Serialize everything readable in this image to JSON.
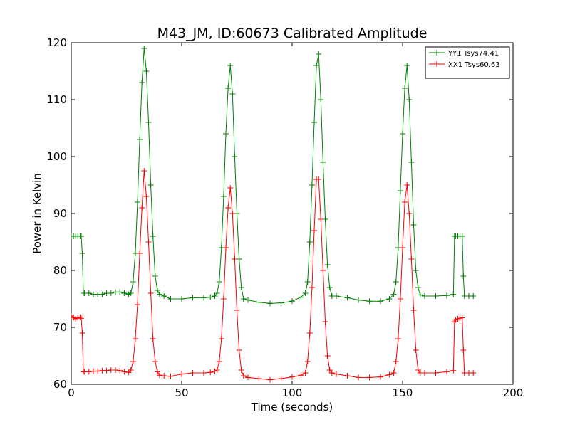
{
  "chart_data": {
    "type": "line",
    "title": "M43_JM, ID:60673 Calibrated Amplitude",
    "xlabel": "Time (seconds)",
    "ylabel": "Power in Kelvin",
    "xlim": [
      0,
      200
    ],
    "ylim": [
      60,
      120
    ],
    "xticks": [
      "0",
      "50",
      "100",
      "150",
      "200"
    ],
    "yticks": [
      "60",
      "70",
      "80",
      "90",
      "100",
      "110",
      "120"
    ],
    "grid": false,
    "legend_position": "top-right",
    "marker": "plus",
    "series": [
      {
        "name": "YY1 Tsys74.41",
        "color": "#008000",
        "points": [
          [
            0,
            86.0
          ],
          [
            1,
            86.0
          ],
          [
            2,
            86.0
          ],
          [
            3,
            86.0
          ],
          [
            4,
            86.0
          ],
          [
            4.5,
            86.0
          ],
          [
            5,
            83.0
          ],
          [
            5.5,
            76.0
          ],
          [
            6,
            76.0
          ],
          [
            8,
            76.0
          ],
          [
            10,
            75.8
          ],
          [
            12,
            75.8
          ],
          [
            14,
            75.8
          ],
          [
            16,
            76.0
          ],
          [
            18,
            76.0
          ],
          [
            20,
            76.2
          ],
          [
            22,
            76.2
          ],
          [
            24,
            76.0
          ],
          [
            26,
            75.8
          ],
          [
            27,
            76.0
          ],
          [
            28,
            78.0
          ],
          [
            29,
            83.0
          ],
          [
            30,
            92.0
          ],
          [
            31,
            103.0
          ],
          [
            32,
            113.0
          ],
          [
            33,
            119.0
          ],
          [
            34,
            115.0
          ],
          [
            35,
            106.0
          ],
          [
            36,
            95.0
          ],
          [
            37,
            86.0
          ],
          [
            38,
            79.0
          ],
          [
            39,
            76.5
          ],
          [
            40,
            75.8
          ],
          [
            42,
            75.5
          ],
          [
            45,
            75.0
          ],
          [
            50,
            75.0
          ],
          [
            55,
            75.2
          ],
          [
            60,
            75.2
          ],
          [
            63,
            75.3
          ],
          [
            65,
            75.5
          ],
          [
            66,
            76.0
          ],
          [
            67,
            78.0
          ],
          [
            68,
            84.0
          ],
          [
            69,
            93.0
          ],
          [
            70,
            104.0
          ],
          [
            71,
            112.0
          ],
          [
            72,
            116.0
          ],
          [
            73,
            111.0
          ],
          [
            74,
            100.0
          ],
          [
            75,
            90.0
          ],
          [
            76,
            82.0
          ],
          [
            77,
            77.0
          ],
          [
            78,
            75.0
          ],
          [
            80,
            74.8
          ],
          [
            85,
            74.4
          ],
          [
            90,
            74.2
          ],
          [
            95,
            74.3
          ],
          [
            100,
            74.6
          ],
          [
            104,
            75.3
          ],
          [
            106,
            76.0
          ],
          [
            107,
            78.0
          ],
          [
            108,
            85.0
          ],
          [
            109,
            95.0
          ],
          [
            110,
            106.0
          ],
          [
            111,
            116.0
          ],
          [
            112,
            118.0
          ],
          [
            113,
            110.0
          ],
          [
            114,
            99.0
          ],
          [
            115,
            89.0
          ],
          [
            116,
            81.0
          ],
          [
            117,
            77.0
          ],
          [
            118,
            75.5
          ],
          [
            120,
            75.5
          ],
          [
            125,
            75.2
          ],
          [
            130,
            74.8
          ],
          [
            135,
            74.6
          ],
          [
            140,
            74.6
          ],
          [
            144,
            75.0
          ],
          [
            146,
            75.8
          ],
          [
            147,
            78.0
          ],
          [
            148,
            84.0
          ],
          [
            149,
            94.0
          ],
          [
            150,
            104.0
          ],
          [
            151,
            112.0
          ],
          [
            152,
            116.0
          ],
          [
            153,
            110.0
          ],
          [
            154,
            99.0
          ],
          [
            155,
            88.0
          ],
          [
            156,
            80.0
          ],
          [
            157,
            77.0
          ],
          [
            158,
            75.7
          ],
          [
            160,
            75.5
          ],
          [
            165,
            75.5
          ],
          [
            170,
            75.6
          ],
          [
            173,
            75.8
          ],
          [
            173.5,
            86.0
          ],
          [
            174,
            86.0
          ],
          [
            175,
            86.0
          ],
          [
            176,
            86.0
          ],
          [
            177,
            86.0
          ],
          [
            177.5,
            79.0
          ],
          [
            178,
            75.5
          ],
          [
            180,
            75.5
          ],
          [
            182,
            75.5
          ]
        ]
      },
      {
        "name": "XX1 Tsys60.63",
        "color": "#ff0000",
        "points": [
          [
            0,
            72.0
          ],
          [
            1,
            71.7
          ],
          [
            2,
            71.5
          ],
          [
            3,
            71.7
          ],
          [
            4,
            71.8
          ],
          [
            4.5,
            71.6
          ],
          [
            5,
            69.0
          ],
          [
            5.5,
            62.2
          ],
          [
            6,
            62.2
          ],
          [
            8,
            62.2
          ],
          [
            10,
            62.3
          ],
          [
            12,
            62.3
          ],
          [
            14,
            62.4
          ],
          [
            16,
            62.4
          ],
          [
            18,
            62.5
          ],
          [
            20,
            62.5
          ],
          [
            22,
            62.4
          ],
          [
            24,
            62.2
          ],
          [
            26,
            62.1
          ],
          [
            27,
            62.5
          ],
          [
            28,
            64.0
          ],
          [
            29,
            68.0
          ],
          [
            30,
            74.0
          ],
          [
            31,
            83.0
          ],
          [
            32,
            91.0
          ],
          [
            33,
            97.5
          ],
          [
            34,
            93.0
          ],
          [
            35,
            85.0
          ],
          [
            36,
            76.0
          ],
          [
            37,
            68.0
          ],
          [
            38,
            64.0
          ],
          [
            39,
            62.2
          ],
          [
            40,
            61.6
          ],
          [
            42,
            61.5
          ],
          [
            45,
            61.4
          ],
          [
            50,
            61.8
          ],
          [
            55,
            62.0
          ],
          [
            60,
            62.0
          ],
          [
            63,
            62.1
          ],
          [
            65,
            62.3
          ],
          [
            66,
            62.5
          ],
          [
            67,
            64.0
          ],
          [
            68,
            68.0
          ],
          [
            69,
            75.0
          ],
          [
            70,
            84.0
          ],
          [
            71,
            91.0
          ],
          [
            72,
            94.5
          ],
          [
            73,
            90.0
          ],
          [
            74,
            82.0
          ],
          [
            75,
            73.0
          ],
          [
            76,
            66.0
          ],
          [
            77,
            62.5
          ],
          [
            78,
            61.5
          ],
          [
            80,
            61.2
          ],
          [
            85,
            61.0
          ],
          [
            90,
            60.8
          ],
          [
            95,
            61.0
          ],
          [
            100,
            61.3
          ],
          [
            104,
            61.6
          ],
          [
            106,
            62.0
          ],
          [
            107,
            64.0
          ],
          [
            108,
            69.0
          ],
          [
            109,
            77.0
          ],
          [
            110,
            87.0
          ],
          [
            111,
            96.0
          ],
          [
            112,
            96.0
          ],
          [
            113,
            89.0
          ],
          [
            114,
            80.0
          ],
          [
            115,
            71.0
          ],
          [
            116,
            65.0
          ],
          [
            117,
            62.5
          ],
          [
            118,
            62.0
          ],
          [
            120,
            61.8
          ],
          [
            125,
            61.5
          ],
          [
            130,
            61.2
          ],
          [
            135,
            61.2
          ],
          [
            140,
            61.3
          ],
          [
            144,
            61.7
          ],
          [
            146,
            62.0
          ],
          [
            147,
            64.0
          ],
          [
            148,
            68.0
          ],
          [
            149,
            75.0
          ],
          [
            150,
            84.0
          ],
          [
            151,
            92.0
          ],
          [
            152,
            95.0
          ],
          [
            153,
            90.0
          ],
          [
            154,
            82.0
          ],
          [
            155,
            73.0
          ],
          [
            156,
            66.0
          ],
          [
            157,
            62.5
          ],
          [
            158,
            62.0
          ],
          [
            160,
            62.0
          ],
          [
            165,
            62.0
          ],
          [
            170,
            62.2
          ],
          [
            173,
            62.4
          ],
          [
            173.5,
            71.0
          ],
          [
            174,
            71.3
          ],
          [
            175,
            71.5
          ],
          [
            176,
            71.6
          ],
          [
            177,
            71.7
          ],
          [
            177.5,
            66.0
          ],
          [
            178,
            62.0
          ],
          [
            180,
            62.0
          ],
          [
            182,
            62.0
          ]
        ]
      }
    ]
  }
}
